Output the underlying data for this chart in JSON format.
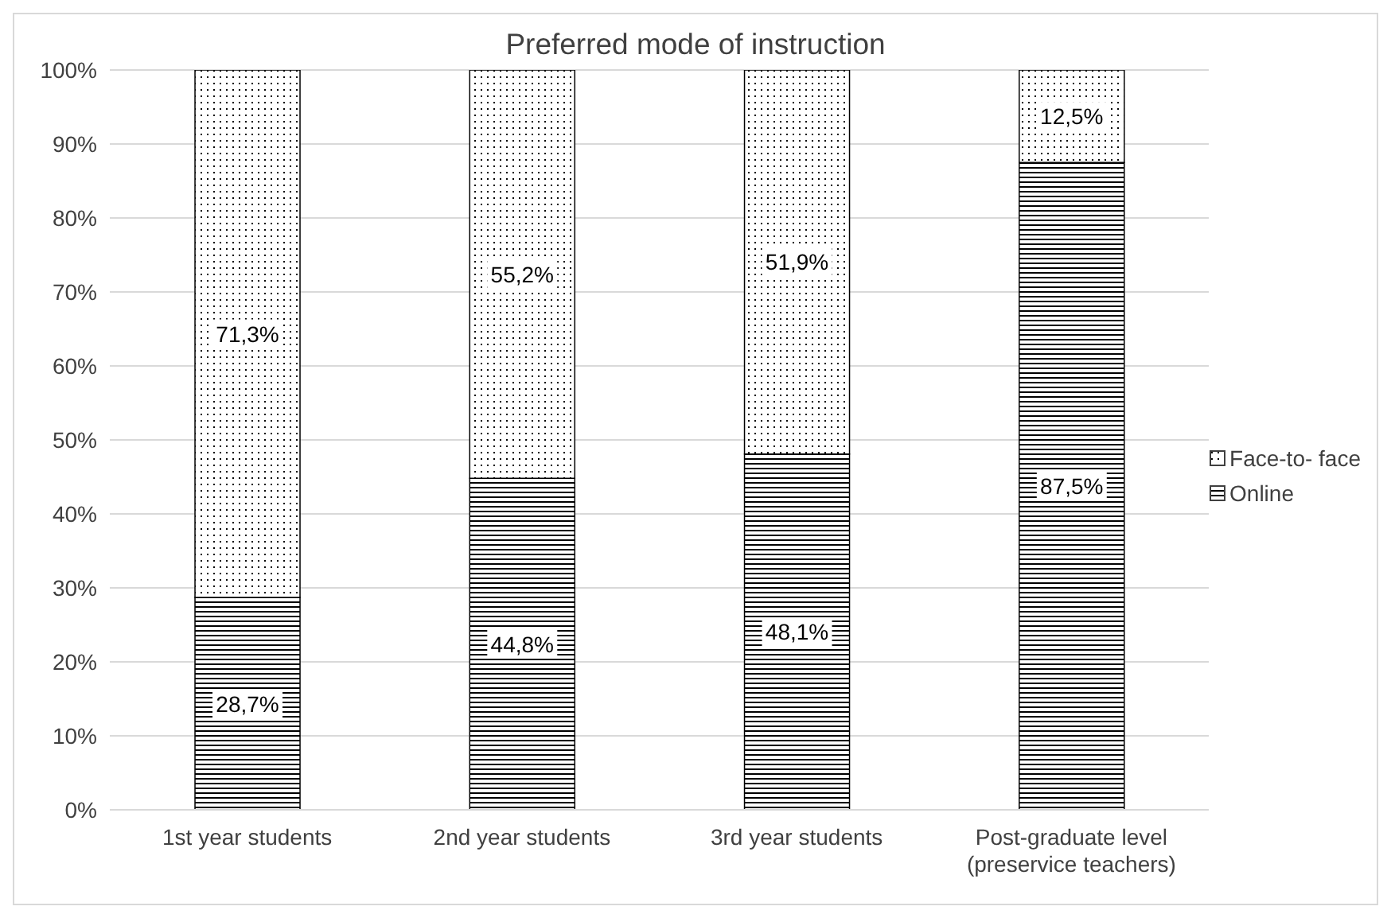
{
  "chart_data": {
    "type": "bar",
    "title": "Preferred mode of instruction",
    "stacked": true,
    "categories": [
      "1st year students",
      "2nd year students",
      "3rd year students",
      "Post-graduate level (preservice teachers)"
    ],
    "series": [
      {
        "name": "Online",
        "color": "#000000",
        "values": [
          28.7,
          44.8,
          48.1,
          87.5
        ],
        "value_labels": [
          "28,7%",
          "44,8%",
          "48,1%",
          "87,5%"
        ]
      },
      {
        "name": "Face-to- face",
        "color": "#000000",
        "values": [
          71.3,
          55.2,
          51.9,
          12.5
        ],
        "value_labels": [
          "71,3%",
          "55,2%",
          "51,9%",
          "12,5%"
        ]
      }
    ],
    "ylim": [
      0,
      100
    ],
    "yticks": [
      {
        "value": 0,
        "label": "0%"
      },
      {
        "value": 10,
        "label": "10%"
      },
      {
        "value": 20,
        "label": "20%"
      },
      {
        "value": 30,
        "label": "30%"
      },
      {
        "value": 40,
        "label": "40%"
      },
      {
        "value": 50,
        "label": "50%"
      },
      {
        "value": 60,
        "label": "60%"
      },
      {
        "value": 70,
        "label": "70%"
      },
      {
        "value": 80,
        "label": "80%"
      },
      {
        "value": 90,
        "label": "90%"
      },
      {
        "value": 100,
        "label": "100%"
      }
    ],
    "grid": "y",
    "legend": "right"
  }
}
